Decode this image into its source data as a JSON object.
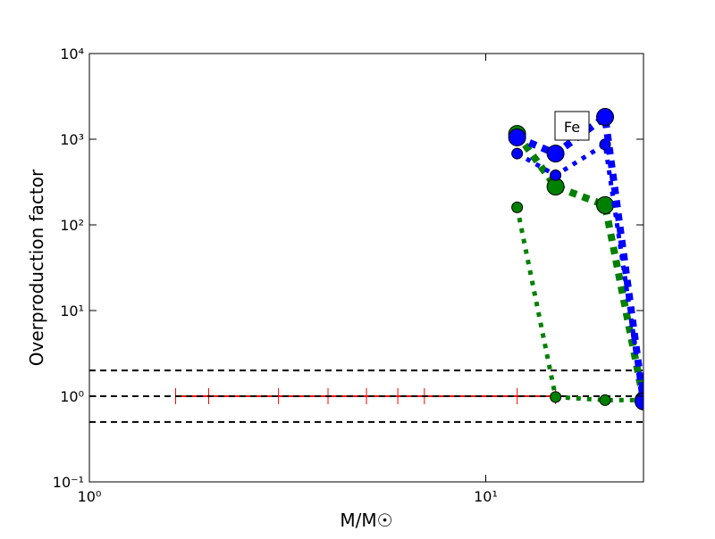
{
  "chart_data": {
    "type": "line",
    "x_label": "M/M☉",
    "y_label": "Overproduction factor",
    "annotation": "Fe",
    "xscale": "log",
    "yscale": "log",
    "xlim": [
      1,
      25
    ],
    "ylim": [
      0.1,
      10000
    ],
    "xticks": [
      {
        "value": 1,
        "label": "10⁰"
      },
      {
        "value": 10,
        "label": "10¹"
      }
    ],
    "yticks": [
      {
        "value": 0.1,
        "label": "10⁻¹"
      },
      {
        "value": 1,
        "label": "10⁰"
      },
      {
        "value": 10,
        "label": "10¹"
      },
      {
        "value": 100,
        "label": "10²"
      },
      {
        "value": 1000,
        "label": "10³"
      },
      {
        "value": 10000,
        "label": "10⁴"
      }
    ],
    "hlines": [
      2,
      1,
      0.5
    ],
    "hline_color": "#000000",
    "series": [
      {
        "color": "#ff0000",
        "style": "ticks",
        "x": [
          1.65,
          2,
          3,
          4,
          5,
          6,
          7,
          12,
          15
        ],
        "values": [
          1,
          1,
          1,
          1,
          1,
          1,
          1,
          1,
          1
        ]
      },
      {
        "color": "#008000",
        "style": "thin",
        "x": [
          12,
          15,
          20,
          25
        ],
        "values": [
          160,
          0.98,
          0.9,
          0.9
        ]
      },
      {
        "color": "#008000",
        "style": "thick",
        "x": [
          12,
          15,
          20,
          25
        ],
        "values": [
          1150,
          280,
          170,
          0.9
        ]
      },
      {
        "color": "#0000ff",
        "style": "thin",
        "x": [
          12,
          15,
          20,
          25
        ],
        "values": [
          680,
          380,
          870,
          0.87
        ]
      },
      {
        "color": "#0000ff",
        "style": "thick",
        "x": [
          12,
          15,
          20,
          25
        ],
        "values": [
          1050,
          680,
          1820,
          0.87
        ]
      }
    ]
  }
}
